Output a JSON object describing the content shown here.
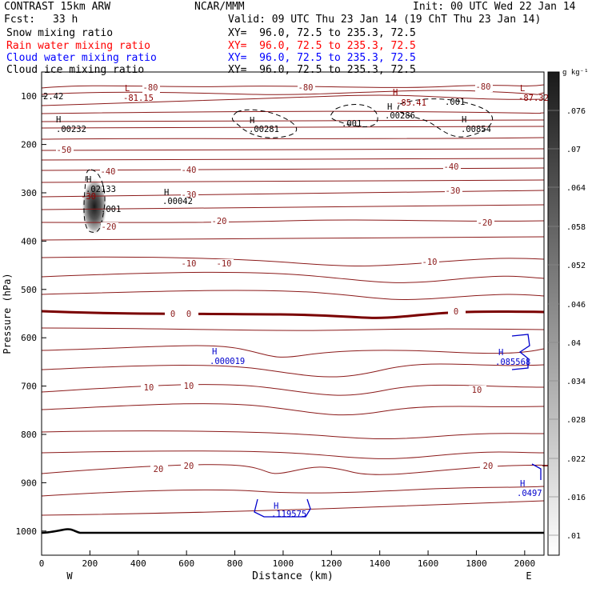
{
  "header": {
    "model": "CONTRAST 15km ARW",
    "center": "NCAR/MMM",
    "init": "Init: 00 UTC Wed 22 Jan 14",
    "fcst_label": "Fcst:",
    "fcst_value": "33 h",
    "valid": "Valid: 09 UTC Thu 23 Jan 14 (19 ChT Thu 23 Jan 14)",
    "fields": [
      {
        "name": "Snow mixing ratio",
        "xy": "XY=  96.0, 72.5 to 235.3, 72.5",
        "color": "#000000"
      },
      {
        "name": "Rain water mixing ratio",
        "xy": "XY=  96.0, 72.5 to 235.3, 72.5",
        "color": "#ff0000"
      },
      {
        "name": "Cloud water mixing ratio",
        "xy": "XY=  96.0, 72.5 to 235.3, 72.5",
        "color": "#0000ff"
      },
      {
        "name": "Cloud ice mixing ratio",
        "xy": "XY=  96.0, 72.5 to 235.3, 72.5",
        "color": "#000000"
      }
    ]
  },
  "chart_data": {
    "type": "cross-section",
    "xlabel": "Distance (km)",
    "ylabel": "Pressure (hPa)",
    "xlim": [
      0,
      2080
    ],
    "ylim": [
      1050,
      50
    ],
    "xticks": [
      "0",
      "200",
      "400",
      "600",
      "800",
      "1000",
      "1200",
      "1400",
      "1600",
      "1800",
      "2000"
    ],
    "yticks": [
      "100",
      "200",
      "300",
      "400",
      "500",
      "600",
      "700",
      "800",
      "900",
      "1000"
    ],
    "west_label": "W",
    "east_label": "E",
    "colorbar": {
      "unit": "g kg⁻¹",
      "labels": [
        ".076",
        ".07",
        ".064",
        ".058",
        ".052",
        ".046",
        ".04",
        ".034",
        ".028",
        ".022",
        ".016",
        ".01"
      ]
    },
    "temperature_contours": [
      {
        "level": -80,
        "labels": [
          "-80",
          "-80",
          "-80"
        ]
      },
      {
        "level": -50,
        "labels": [
          "-50"
        ]
      },
      {
        "level": -40,
        "labels": [
          "-40",
          "-40",
          "-40"
        ]
      },
      {
        "level": -30,
        "labels": [
          "-30",
          "-30"
        ]
      },
      {
        "level": -20,
        "labels": [
          "-20",
          "-20",
          "-20"
        ]
      },
      {
        "level": -10,
        "labels": [
          "-10",
          "-10",
          "-10"
        ]
      },
      {
        "level": 0,
        "labels": [
          "0",
          "0",
          "0"
        ]
      },
      {
        "level": 10,
        "labels": [
          "10",
          "10",
          "10"
        ]
      },
      {
        "level": 20,
        "labels": [
          "20",
          "20",
          "20"
        ]
      }
    ],
    "annotations": [
      {
        "text": "L",
        "color": "#8b0000"
      },
      {
        "text": "-81.15",
        "color": "#8b0000"
      },
      {
        "text": "2.42",
        "color": "#000000"
      },
      {
        "text": "L",
        "color": "#8b0000"
      },
      {
        "text": "-87.32",
        "color": "#8b0000"
      },
      {
        "text": "H",
        "color": "#8b0000"
      },
      {
        "text": "-85.41",
        "color": "#8b0000"
      },
      {
        "text": "H",
        "color": "#000000"
      },
      {
        "text": ".00232",
        "color": "#000000"
      },
      {
        "text": "H",
        "color": "#000000"
      },
      {
        "text": ".00281",
        "color": "#000000"
      },
      {
        "text": ".001",
        "color": "#000000"
      },
      {
        "text": "H",
        "color": "#000000"
      },
      {
        "text": ".00286",
        "color": "#000000"
      },
      {
        "text": ".001",
        "color": "#000000"
      },
      {
        "text": "H",
        "color": "#000000"
      },
      {
        "text": ".00854",
        "color": "#000000"
      },
      {
        "text": "H",
        "color": "#000000"
      },
      {
        "text": ".02133",
        "color": "#000000"
      },
      {
        "text": "-30",
        "color": "#8b0000"
      },
      {
        "text": ".001",
        "color": "#000000"
      },
      {
        "text": "H",
        "color": "#000000"
      },
      {
        "text": ".00042",
        "color": "#000000"
      },
      {
        "text": "H",
        "color": "#0000cc"
      },
      {
        "text": ".000019",
        "color": "#0000cc"
      },
      {
        "text": "H",
        "color": "#0000cc"
      },
      {
        "text": ".085568",
        "color": "#0000cc"
      },
      {
        "text": "H",
        "color": "#0000cc"
      },
      {
        "text": ".0497",
        "color": "#0000cc"
      },
      {
        "text": "H",
        "color": "#0000cc"
      },
      {
        "text": ".119575",
        "color": "#0000cc"
      }
    ]
  }
}
